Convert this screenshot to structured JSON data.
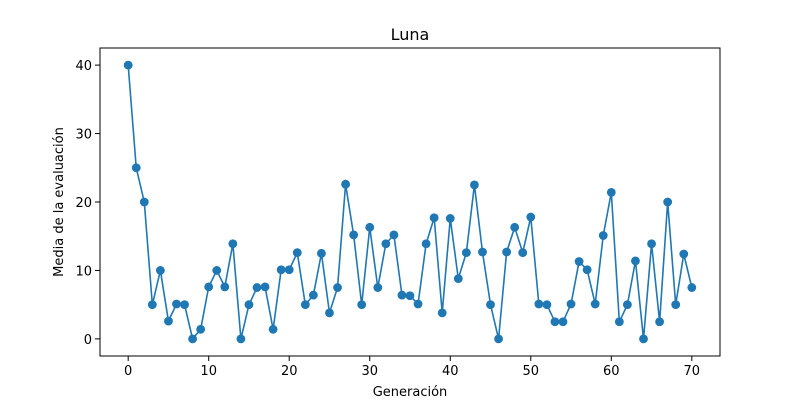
{
  "chart_data": {
    "type": "line",
    "title": "Luna",
    "xlabel": "Generación",
    "ylabel": "Media de la evaluación",
    "xlim": [
      -3.5,
      73.5
    ],
    "ylim": [
      -2.5,
      42.5
    ],
    "xticks": [
      0,
      10,
      20,
      30,
      40,
      50,
      60,
      70
    ],
    "yticks": [
      0,
      10,
      20,
      30,
      40
    ],
    "grid": false,
    "series": [
      {
        "color": "#1f77b4",
        "marker": "circle",
        "x": [
          0,
          1,
          2,
          3,
          4,
          5,
          6,
          7,
          8,
          9,
          10,
          11,
          12,
          13,
          14,
          15,
          16,
          17,
          18,
          19,
          20,
          21,
          22,
          23,
          24,
          25,
          26,
          27,
          28,
          29,
          30,
          31,
          32,
          33,
          34,
          35,
          36,
          37,
          38,
          39,
          40,
          41,
          42,
          43,
          44,
          45,
          46,
          47,
          48,
          49,
          50,
          51,
          52,
          53,
          54,
          55,
          56,
          57,
          58,
          59,
          60,
          61,
          62,
          63,
          64,
          65,
          66,
          67,
          68,
          69,
          70
        ],
        "y": [
          40,
          25,
          20,
          5,
          10,
          2.6,
          5.1,
          5,
          0,
          1.4,
          7.6,
          10,
          7.6,
          13.9,
          0,
          5,
          7.5,
          7.6,
          1.4,
          10.1,
          10.1,
          12.6,
          5,
          6.4,
          12.5,
          3.8,
          7.5,
          22.6,
          15.2,
          5,
          16.3,
          7.5,
          13.9,
          15.2,
          6.4,
          6.3,
          5.1,
          13.9,
          17.7,
          3.8,
          17.6,
          8.8,
          12.6,
          22.5,
          12.7,
          5,
          0,
          12.7,
          16.3,
          12.6,
          17.8,
          5.1,
          5,
          2.5,
          2.5,
          5.1,
          11.3,
          10.1,
          5.1,
          15.1,
          21.4,
          2.5,
          5,
          11.4,
          0,
          13.9,
          2.5,
          20,
          5,
          12.4,
          7.5
        ]
      }
    ]
  }
}
